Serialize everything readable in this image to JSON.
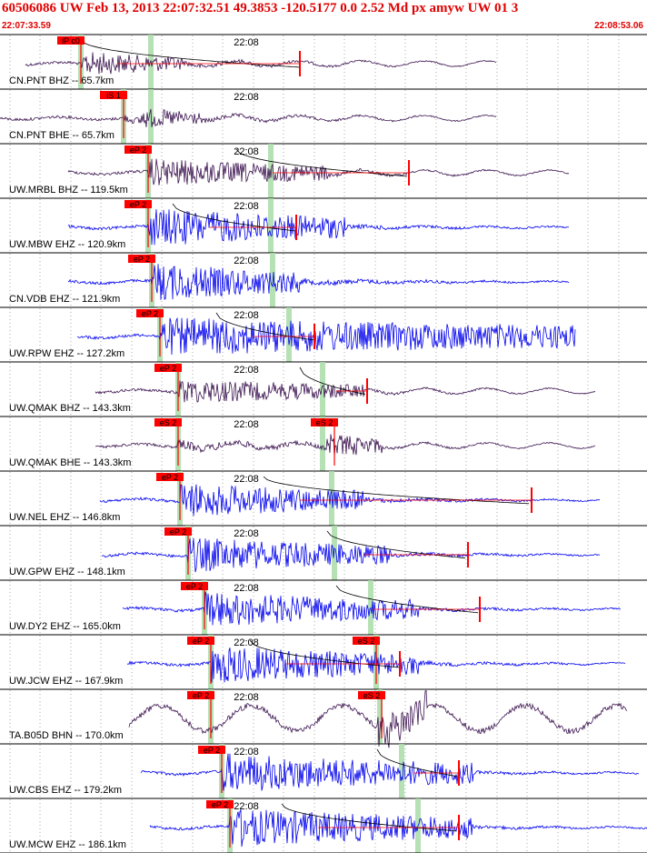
{
  "header": {
    "title": "60506086 UW Feb 13, 2013 22:07:32.51   49.3853 -120.5177  0.0 2.52 Md px amyw UW 01   3",
    "start_time": "22:07:33.59",
    "end_time": "22:08:53.06"
  },
  "colors": {
    "header_red": "#e00000",
    "trace_blue": "#0000ee",
    "trace_purple": "#3c1450",
    "phase_green": "#a8dca8",
    "pick_red": "#ff0000",
    "label_black": "#000000"
  },
  "chart_data": {
    "type": "seismogram",
    "time_start": "22:07:33.59",
    "time_end": "22:08:53.06",
    "minute_tick_label": "22:08",
    "traces": [
      {
        "station": "CN.PNT BHZ -- 65.7km",
        "label": "CN.PNT BHZ -- 65.7km",
        "color": "purple",
        "pick_label": "iP c0",
        "has_coda_curve": true
      },
      {
        "station": "CN.PNT BHE -- 65.7km",
        "label": "CN.PNT BHE -- 65.7km",
        "color": "purple",
        "pick_label": "iS 1",
        "has_coda_curve": false
      },
      {
        "station": "UW.MRBL BHZ -- 119.5km",
        "label": "UW.MRBL BHZ -- 119.5km",
        "color": "purple",
        "pick_label": "eP 2",
        "has_coda_curve": true
      },
      {
        "station": "UW.MBW EHZ -- 120.9km",
        "label": "UW.MBW EHZ -- 120.9km",
        "color": "blue",
        "pick_label": "eP 2",
        "has_coda_curve": true
      },
      {
        "station": "CN.VDB EHZ -- 121.9km",
        "label": "CN.VDB EHZ -- 121.9km",
        "color": "blue",
        "pick_label": "eP 2",
        "has_coda_curve": false
      },
      {
        "station": "UW.RPW EHZ -- 127.2km",
        "label": "UW.RPW EHZ -- 127.2km",
        "color": "blue",
        "pick_label": "eP 2",
        "has_coda_curve": true
      },
      {
        "station": "UW.QMAK BHZ -- 143.3km",
        "label": "UW.QMAK BHZ -- 143.3km",
        "color": "purple",
        "pick_label": "eP 2",
        "has_coda_curve": true
      },
      {
        "station": "UW.QMAK BHE -- 143.3km",
        "label": "UW.QMAK BHE -- 143.3km",
        "color": "purple",
        "pick_label": "eS 2",
        "has_coda_curve": false
      },
      {
        "station": "UW.NEL EHZ -- 146.8km",
        "label": "UW.NEL EHZ -- 146.8km",
        "color": "blue",
        "pick_label": "eP 2",
        "has_coda_curve": true
      },
      {
        "station": "UW.GPW EHZ -- 148.1km",
        "label": "UW.GPW EHZ -- 148.1km",
        "color": "blue",
        "pick_label": "eP 2",
        "has_coda_curve": true
      },
      {
        "station": "UW.DY2 EHZ -- 165.0km",
        "label": "UW.DY2 EHZ -- 165.0km",
        "color": "blue",
        "pick_label": "eP 2",
        "has_coda_curve": true
      },
      {
        "station": "UW.JCW EHZ -- 167.9km",
        "label": "UW.JCW EHZ -- 167.9km",
        "color": "blue",
        "pick_label": "eP 2",
        "has_coda_curve": true
      },
      {
        "station": "TA.B05D BHN -- 170.0km",
        "label": "TA.B05D BHN -- 170.0km",
        "color": "purple",
        "pick_label": "eP 2",
        "has_coda_curve": false
      },
      {
        "station": "UW.CBS EHZ -- 179.2km",
        "label": "UW.CBS EHZ -- 179.2km",
        "color": "blue",
        "pick_label": "eP 2",
        "has_coda_curve": true
      },
      {
        "station": "UW.MCW EHZ -- 186.1km",
        "label": "UW.MCW EHZ -- 186.1km",
        "color": "blue",
        "pick_label": "eP 2",
        "has_coda_curve": true
      }
    ],
    "secondary_picks": [
      {
        "trace_index": 7,
        "label": "eS 2"
      },
      {
        "trace_index": 11,
        "label": "eS 2"
      },
      {
        "trace_index": 12,
        "label": "eS 2"
      }
    ]
  }
}
